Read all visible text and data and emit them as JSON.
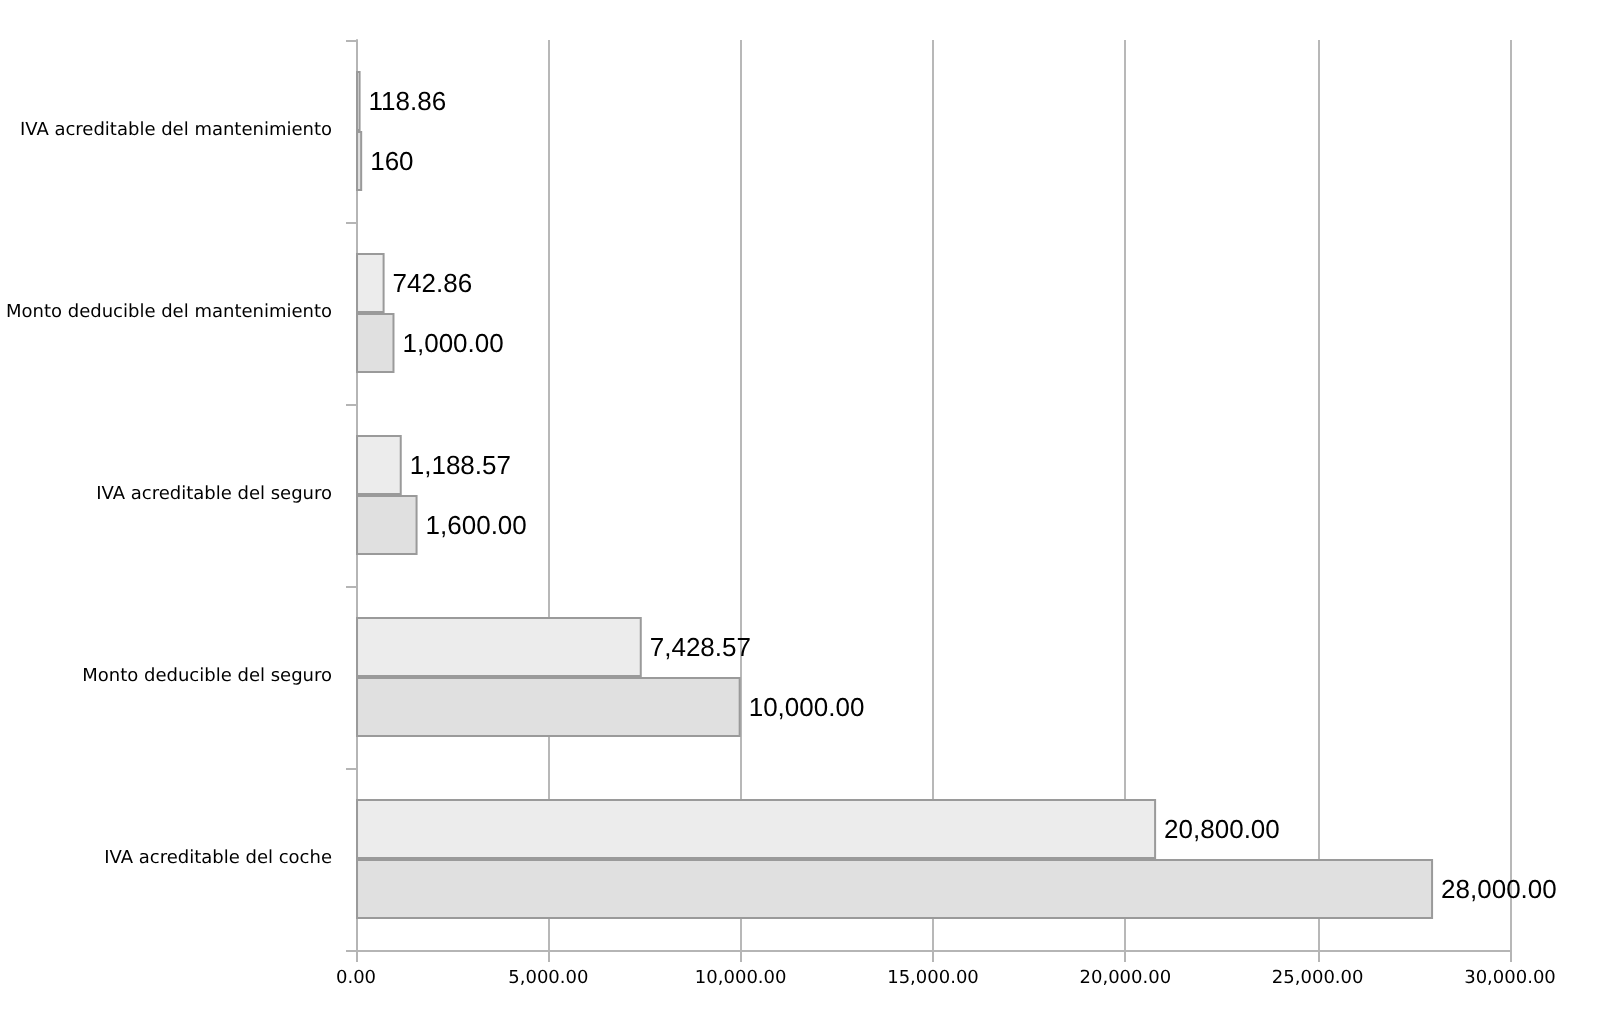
{
  "chart_data": {
    "type": "bar",
    "orientation": "horizontal",
    "categories": [
      "IVA acreditable del mantenimiento",
      "Monto deducible del mantenimiento",
      "IVA acreditable del seguro",
      "Monto deducible del seguro",
      "IVA acreditable del coche"
    ],
    "series": [
      {
        "color": "#ececec",
        "values": [
          118.86,
          742.86,
          1188.57,
          7428.57,
          20800
        ],
        "value_labels": [
          "118.86",
          "742.86",
          "1,188.57",
          "7,428.57",
          "20,800.00"
        ]
      },
      {
        "color": "#e0e0e0",
        "values": [
          160,
          1000,
          1600,
          10000,
          28000
        ],
        "value_labels": [
          "160",
          "1,000.00",
          "1,600.00",
          "10,000.00",
          "28,000.00"
        ]
      }
    ],
    "xlim": [
      0,
      30000
    ],
    "xticks": [
      {
        "value": 0,
        "label": "0.00"
      },
      {
        "value": 5000,
        "label": "5,000.00"
      },
      {
        "value": 10000,
        "label": "10,000.00"
      },
      {
        "value": 15000,
        "label": "15,000.00"
      },
      {
        "value": 20000,
        "label": "20,000.00"
      },
      {
        "value": 25000,
        "label": "25,000.00"
      },
      {
        "value": 30000,
        "label": "30,000.00"
      }
    ],
    "grid": "x"
  }
}
